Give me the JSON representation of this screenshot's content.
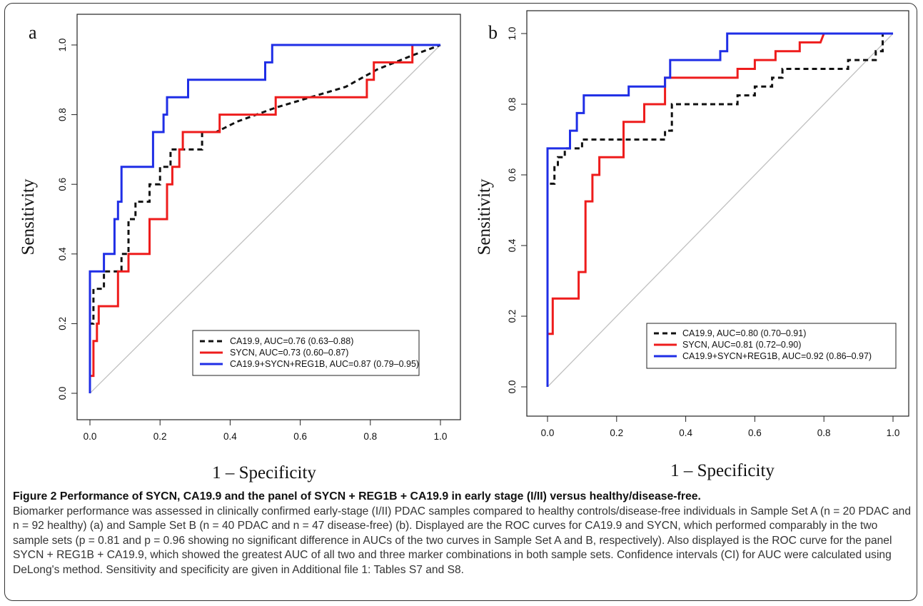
{
  "figure": {
    "caption_title": "Figure 2 Performance of SYCN, CA19.9 and the panel of SYCN + REG1B + CA19.9 in early stage (I/II) versus healthy/disease-free.",
    "caption_body": "Biomarker performance was assessed in clinically confirmed early-stage (I/II) PDAC samples compared to healthy controls/disease-free individuals in Sample Set A (n = 20 PDAC and n = 92 healthy) (a) and Sample Set B (n = 40 PDAC and n = 47 disease-free) (b). Displayed are the ROC curves for CA19.9 and SYCN, which performed comparably in the two sample sets (p = 0.81 and p = 0.96 showing no significant difference in AUCs of the two curves in Sample Set A and B, respectively). Also displayed is the ROC curve for the panel SYCN + REG1B + CA19.9, which showed the greatest AUC of all two and three marker combinations in both sample sets. Confidence intervals (CI) for AUC were calculated using DeLong's method. Sensitivity and specificity are given in Additional file 1: Tables S7 and S8."
  },
  "colors": {
    "ca199": "#111111",
    "sycn": "#ee1c1c",
    "panel": "#1f2ee6",
    "diagonal": "#c0c0c0",
    "axis": "#222222"
  },
  "chart_data": [
    {
      "panel_label": "a",
      "type": "line",
      "xlabel": "1 – Specificity",
      "ylabel": "Sensitivity",
      "xlim": [
        0,
        1
      ],
      "ylim": [
        0,
        1
      ],
      "xticks": [
        "0.0",
        "0.2",
        "0.4",
        "0.6",
        "0.8",
        "1.0"
      ],
      "yticks": [
        "0.0",
        "0.2",
        "0.4",
        "0.6",
        "0.8",
        "1.0"
      ],
      "legend_position": "bottom-right",
      "grid": false,
      "reference_line": [
        [
          0,
          0
        ],
        [
          1,
          1
        ]
      ],
      "series": [
        {
          "name": "CA19.9, AUC=0.76 (0.63–0.88)",
          "style": "dashed",
          "points": [
            [
              0,
              0
            ],
            [
              0,
              0.2
            ],
            [
              0.01,
              0.2
            ],
            [
              0.01,
              0.3
            ],
            [
              0.04,
              0.3
            ],
            [
              0.04,
              0.35
            ],
            [
              0.09,
              0.35
            ],
            [
              0.09,
              0.4
            ],
            [
              0.11,
              0.4
            ],
            [
              0.11,
              0.5
            ],
            [
              0.13,
              0.5
            ],
            [
              0.13,
              0.55
            ],
            [
              0.17,
              0.55
            ],
            [
              0.17,
              0.6
            ],
            [
              0.2,
              0.6
            ],
            [
              0.2,
              0.65
            ],
            [
              0.23,
              0.65
            ],
            [
              0.23,
              0.7
            ],
            [
              0.32,
              0.7
            ],
            [
              0.32,
              0.75
            ],
            [
              0.36,
              0.75
            ],
            [
              0.42,
              0.78
            ],
            [
              0.53,
              0.82
            ],
            [
              0.63,
              0.85
            ],
            [
              0.73,
              0.88
            ],
            [
              0.82,
              0.93
            ],
            [
              0.92,
              0.97
            ],
            [
              1,
              1
            ]
          ]
        },
        {
          "name": "SYCN, AUC=0.73 (0.60–0.87)",
          "style": "solid",
          "points": [
            [
              0,
              0
            ],
            [
              0,
              0.05
            ],
            [
              0.01,
              0.05
            ],
            [
              0.01,
              0.15
            ],
            [
              0.02,
              0.15
            ],
            [
              0.02,
              0.2
            ],
            [
              0.025,
              0.2
            ],
            [
              0.025,
              0.25
            ],
            [
              0.08,
              0.25
            ],
            [
              0.08,
              0.35
            ],
            [
              0.11,
              0.35
            ],
            [
              0.11,
              0.4
            ],
            [
              0.17,
              0.4
            ],
            [
              0.17,
              0.5
            ],
            [
              0.22,
              0.5
            ],
            [
              0.22,
              0.6
            ],
            [
              0.235,
              0.6
            ],
            [
              0.235,
              0.65
            ],
            [
              0.255,
              0.65
            ],
            [
              0.255,
              0.7
            ],
            [
              0.265,
              0.7
            ],
            [
              0.265,
              0.75
            ],
            [
              0.37,
              0.75
            ],
            [
              0.37,
              0.8
            ],
            [
              0.53,
              0.8
            ],
            [
              0.53,
              0.85
            ],
            [
              0.79,
              0.85
            ],
            [
              0.79,
              0.9
            ],
            [
              0.81,
              0.9
            ],
            [
              0.81,
              0.95
            ],
            [
              0.92,
              0.95
            ],
            [
              0.92,
              1
            ],
            [
              1,
              1
            ]
          ]
        },
        {
          "name": "CA19.9+SYCN+REG1B, AUC=0.87 (0.79–0.95)",
          "style": "solid",
          "points": [
            [
              0,
              0
            ],
            [
              0,
              0.35
            ],
            [
              0.04,
              0.35
            ],
            [
              0.04,
              0.4
            ],
            [
              0.07,
              0.4
            ],
            [
              0.07,
              0.5
            ],
            [
              0.08,
              0.5
            ],
            [
              0.08,
              0.55
            ],
            [
              0.09,
              0.55
            ],
            [
              0.09,
              0.65
            ],
            [
              0.18,
              0.65
            ],
            [
              0.18,
              0.75
            ],
            [
              0.21,
              0.75
            ],
            [
              0.21,
              0.8
            ],
            [
              0.22,
              0.8
            ],
            [
              0.22,
              0.85
            ],
            [
              0.28,
              0.85
            ],
            [
              0.28,
              0.9
            ],
            [
              0.5,
              0.9
            ],
            [
              0.5,
              0.95
            ],
            [
              0.52,
              0.95
            ],
            [
              0.52,
              1
            ],
            [
              1,
              1
            ]
          ]
        }
      ]
    },
    {
      "panel_label": "b",
      "type": "line",
      "xlabel": "1 – Specificity",
      "ylabel": "Sensitivity",
      "xlim": [
        0,
        1
      ],
      "ylim": [
        0,
        1
      ],
      "xticks": [
        "0.0",
        "0.2",
        "0.4",
        "0.6",
        "0.8",
        "1.0"
      ],
      "yticks": [
        "0.0",
        "0.2",
        "0.4",
        "0.6",
        "0.8",
        "1.0"
      ],
      "legend_position": "bottom-right",
      "grid": false,
      "reference_line": [
        [
          0,
          0
        ],
        [
          1,
          1
        ]
      ],
      "series": [
        {
          "name": "CA19.9, AUC=0.80 (0.70–0.91)",
          "style": "dashed",
          "points": [
            [
              0,
              0
            ],
            [
              0,
              0.575
            ],
            [
              0.02,
              0.575
            ],
            [
              0.02,
              0.625
            ],
            [
              0.03,
              0.625
            ],
            [
              0.03,
              0.65
            ],
            [
              0.05,
              0.65
            ],
            [
              0.05,
              0.675
            ],
            [
              0.1,
              0.675
            ],
            [
              0.1,
              0.7
            ],
            [
              0.34,
              0.7
            ],
            [
              0.34,
              0.725
            ],
            [
              0.36,
              0.725
            ],
            [
              0.36,
              0.8
            ],
            [
              0.55,
              0.8
            ],
            [
              0.55,
              0.825
            ],
            [
              0.6,
              0.825
            ],
            [
              0.6,
              0.85
            ],
            [
              0.65,
              0.85
            ],
            [
              0.65,
              0.875
            ],
            [
              0.68,
              0.875
            ],
            [
              0.68,
              0.9
            ],
            [
              0.87,
              0.9
            ],
            [
              0.87,
              0.925
            ],
            [
              0.95,
              0.925
            ],
            [
              0.95,
              0.95
            ],
            [
              0.97,
              0.95
            ],
            [
              0.97,
              1
            ],
            [
              1,
              1
            ]
          ]
        },
        {
          "name": "SYCN, AUC=0.81 (0.72–0.90)",
          "style": "solid",
          "points": [
            [
              0,
              0
            ],
            [
              0,
              0.15
            ],
            [
              0.015,
              0.15
            ],
            [
              0.015,
              0.25
            ],
            [
              0.09,
              0.25
            ],
            [
              0.09,
              0.325
            ],
            [
              0.11,
              0.325
            ],
            [
              0.11,
              0.525
            ],
            [
              0.13,
              0.525
            ],
            [
              0.13,
              0.6
            ],
            [
              0.15,
              0.6
            ],
            [
              0.15,
              0.65
            ],
            [
              0.22,
              0.65
            ],
            [
              0.22,
              0.75
            ],
            [
              0.28,
              0.75
            ],
            [
              0.28,
              0.8
            ],
            [
              0.34,
              0.8
            ],
            [
              0.34,
              0.875
            ],
            [
              0.55,
              0.875
            ],
            [
              0.55,
              0.9
            ],
            [
              0.6,
              0.9
            ],
            [
              0.6,
              0.925
            ],
            [
              0.66,
              0.925
            ],
            [
              0.66,
              0.95
            ],
            [
              0.73,
              0.95
            ],
            [
              0.73,
              0.975
            ],
            [
              0.79,
              0.975
            ],
            [
              0.8,
              1
            ],
            [
              1,
              1
            ]
          ]
        },
        {
          "name": "CA19.9+SYCN+REG1B, AUC=0.92 (0.86–0.97)",
          "style": "solid",
          "points": [
            [
              0,
              0
            ],
            [
              0,
              0.675
            ],
            [
              0.065,
              0.675
            ],
            [
              0.065,
              0.725
            ],
            [
              0.085,
              0.725
            ],
            [
              0.085,
              0.775
            ],
            [
              0.105,
              0.775
            ],
            [
              0.105,
              0.825
            ],
            [
              0.235,
              0.825
            ],
            [
              0.235,
              0.85
            ],
            [
              0.34,
              0.85
            ],
            [
              0.34,
              0.875
            ],
            [
              0.355,
              0.875
            ],
            [
              0.355,
              0.925
            ],
            [
              0.5,
              0.925
            ],
            [
              0.5,
              0.95
            ],
            [
              0.52,
              0.95
            ],
            [
              0.52,
              1
            ],
            [
              1,
              1
            ]
          ]
        }
      ]
    }
  ]
}
